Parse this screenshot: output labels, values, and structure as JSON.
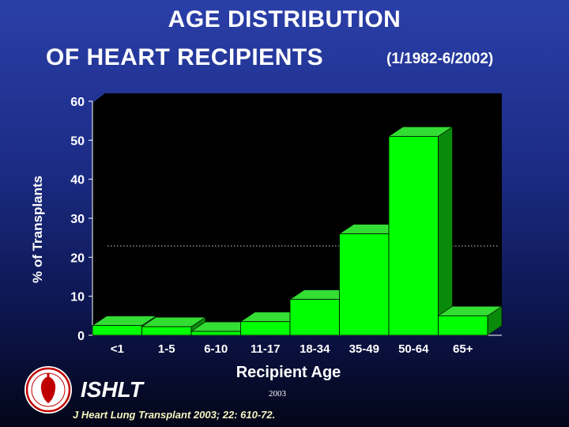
{
  "title": {
    "line1": "AGE DISTRIBUTION",
    "line2": "OF HEART RECIPIENTS",
    "period": "(1/1982-6/2002)"
  },
  "footer": {
    "org": "ISHLT",
    "year": "2003",
    "citation": "J Heart Lung Transplant 2003; 22: 610-72."
  },
  "colors": {
    "background": "#1c2c86",
    "plot_area": "#000000",
    "bar_front": "#00ff00",
    "bar_top": "#33dd33",
    "bar_side": "#0a8a0a"
  },
  "chart_data": {
    "type": "bar",
    "title": "AGE DISTRIBUTION OF HEART RECIPIENTS (1/1982-6/2002)",
    "xlabel": "Recipient Age",
    "ylabel": "% of Transplants",
    "categories": [
      "<1",
      "1-5",
      "6-10",
      "11-17",
      "18-34",
      "35-49",
      "50-64",
      "65+"
    ],
    "values": [
      2.5,
      2.2,
      1.0,
      3.5,
      9.2,
      26.0,
      51.0,
      5.0
    ],
    "ylim": [
      0,
      60
    ],
    "yticks": [
      0,
      10,
      20,
      30,
      40,
      50,
      60
    ],
    "grid": false,
    "legend": "none"
  }
}
